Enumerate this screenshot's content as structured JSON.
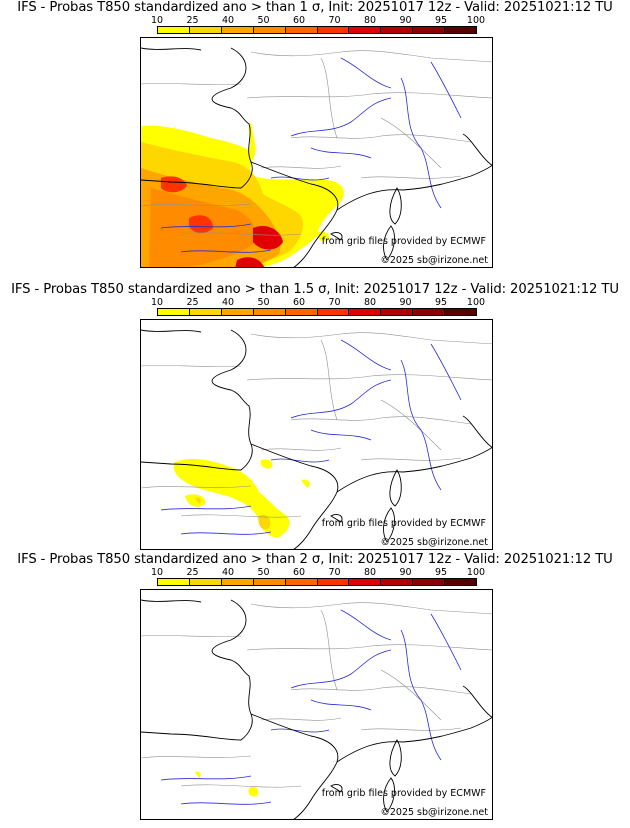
{
  "colors": {
    "scale": [
      "#ffff00",
      "#ffd700",
      "#ffa500",
      "#ff8c00",
      "#ff6600",
      "#ff3300",
      "#e00000",
      "#b00000",
      "#8b0000",
      "#5a0000"
    ],
    "rivers": "#2a2ad8",
    "borders": "#909090",
    "coast": "#000000"
  },
  "legend": {
    "ticks": [
      "10",
      "25",
      "40",
      "50",
      "60",
      "70",
      "80",
      "90",
      "95",
      "100"
    ]
  },
  "panels": [
    {
      "title": "IFS - Probas T850  standardized ano > than 1 σ, Init: 20251017 12z - Valid: 20251021:12 TU",
      "credit_source": "from grib files provided by ECMWF",
      "credit_copyright": "©2025 sb@irizone.net"
    },
    {
      "title": "IFS - Probas T850  standardized ano > than 1.5 σ, Init: 20251017 12z - Valid: 20251021:12 TU",
      "credit_source": "from grib files provided by ECMWF",
      "credit_copyright": "©2025 sb@irizone.net"
    },
    {
      "title": "IFS - Probas T850  standardized ano > than 2 σ, Init: 20251017 12z - Valid: 20251021:12 TU",
      "credit_source": "from grib files provided by ECMWF",
      "credit_copyright": "©2025 sb@irizone.net"
    }
  ]
}
